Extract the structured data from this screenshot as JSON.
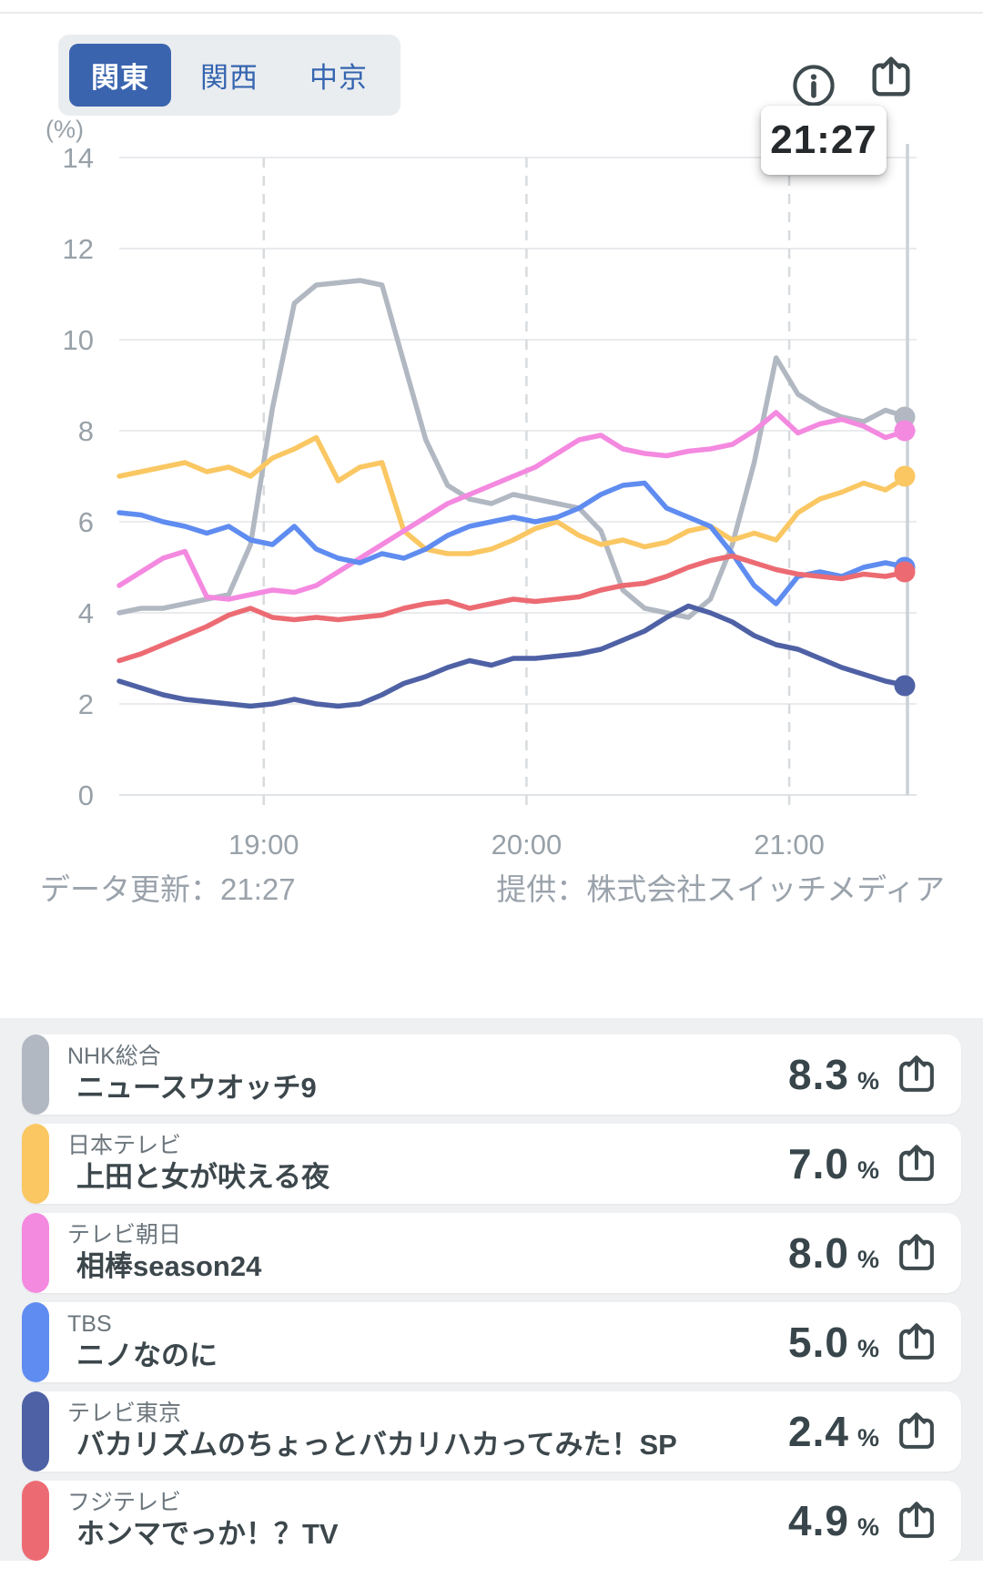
{
  "header": {
    "tabs": [
      {
        "label": "関東",
        "selected": true
      },
      {
        "label": "関西",
        "selected": false
      },
      {
        "label": "中京",
        "selected": false
      }
    ]
  },
  "tooltip": {
    "time": "21:27"
  },
  "chart_data": {
    "type": "line",
    "unit_label": "(%)",
    "ylim": [
      0,
      14
    ],
    "y_ticks": [
      0,
      2,
      4,
      6,
      8,
      10,
      12,
      14
    ],
    "x_tick_labels": [
      "19:00",
      "20:00",
      "21:00"
    ],
    "x_tick_minutes": [
      1140,
      1200,
      1260
    ],
    "x_range_minutes": [
      1107,
      1287
    ],
    "sample_interval_min": 5,
    "grid": "on",
    "cursor_time": "21:27",
    "series": [
      {
        "station": "NHK総合",
        "program": "ニュースウオッチ9",
        "rating": 8.3,
        "rating_str": "8.3",
        "color": "#b1b8c2",
        "values": [
          4.0,
          4.1,
          4.1,
          4.2,
          4.3,
          4.4,
          5.5,
          8.5,
          10.8,
          11.2,
          11.25,
          11.3,
          11.2,
          9.5,
          7.8,
          6.8,
          6.5,
          6.4,
          6.6,
          6.5,
          6.4,
          6.3,
          5.8,
          4.5,
          4.1,
          4.0,
          3.9,
          4.3,
          5.5,
          7.3,
          9.6,
          8.8,
          8.5,
          8.3,
          8.2,
          8.45,
          8.3
        ]
      },
      {
        "station": "日本テレビ",
        "program": "上田と女が吠える夜",
        "rating": 7.0,
        "rating_str": "7.0",
        "color": "#fac763",
        "values": [
          7.0,
          7.1,
          7.2,
          7.3,
          7.1,
          7.2,
          7.0,
          7.4,
          7.6,
          7.85,
          6.9,
          7.2,
          7.3,
          5.8,
          5.4,
          5.3,
          5.3,
          5.4,
          5.6,
          5.85,
          6.0,
          5.7,
          5.5,
          5.6,
          5.45,
          5.55,
          5.8,
          5.9,
          5.6,
          5.75,
          5.6,
          6.2,
          6.5,
          6.65,
          6.85,
          6.7,
          7.0
        ]
      },
      {
        "station": "テレビ朝日",
        "program": "相棒season24",
        "rating": 8.0,
        "rating_str": "8.0",
        "color": "#f489e0",
        "values": [
          4.6,
          4.9,
          5.2,
          5.35,
          4.35,
          4.3,
          4.4,
          4.5,
          4.45,
          4.6,
          4.9,
          5.2,
          5.5,
          5.8,
          6.1,
          6.4,
          6.6,
          6.8,
          7.0,
          7.2,
          7.5,
          7.8,
          7.9,
          7.6,
          7.5,
          7.45,
          7.55,
          7.6,
          7.7,
          8.0,
          8.4,
          7.95,
          8.15,
          8.25,
          8.1,
          7.85,
          8.0
        ]
      },
      {
        "station": "TBS",
        "program": "ニノなのに",
        "rating": 5.0,
        "rating_str": "5.0",
        "color": "#5f8cf0",
        "values": [
          6.2,
          6.15,
          6.0,
          5.9,
          5.75,
          5.9,
          5.6,
          5.5,
          5.9,
          5.4,
          5.2,
          5.1,
          5.3,
          5.2,
          5.4,
          5.7,
          5.9,
          6.0,
          6.1,
          6.0,
          6.1,
          6.3,
          6.6,
          6.8,
          6.85,
          6.3,
          6.1,
          5.9,
          5.3,
          4.6,
          4.2,
          4.8,
          4.9,
          4.8,
          5.0,
          5.1,
          5.0
        ]
      },
      {
        "station": "テレビ東京",
        "program": "バカリズムのちょっとバカリハカってみた！SP",
        "rating": 2.4,
        "rating_str": "2.4",
        "color": "#4f61a5",
        "values": [
          2.5,
          2.35,
          2.2,
          2.1,
          2.05,
          2.0,
          1.95,
          2.0,
          2.1,
          2.0,
          1.95,
          2.0,
          2.2,
          2.45,
          2.6,
          2.8,
          2.95,
          2.85,
          3.0,
          3.0,
          3.05,
          3.1,
          3.2,
          3.4,
          3.6,
          3.9,
          4.15,
          4.0,
          3.8,
          3.5,
          3.3,
          3.2,
          3.0,
          2.8,
          2.65,
          2.5,
          2.4
        ]
      },
      {
        "station": "フジテレビ",
        "program": "ホンマでっか！？TV",
        "rating": 4.9,
        "rating_str": "4.9",
        "color": "#ec6b73",
        "values": [
          2.95,
          3.1,
          3.3,
          3.5,
          3.7,
          3.95,
          4.1,
          3.9,
          3.85,
          3.9,
          3.85,
          3.9,
          3.95,
          4.1,
          4.2,
          4.25,
          4.1,
          4.2,
          4.3,
          4.25,
          4.3,
          4.35,
          4.5,
          4.6,
          4.65,
          4.8,
          5.0,
          5.15,
          5.25,
          5.1,
          4.95,
          4.85,
          4.8,
          4.75,
          4.85,
          4.8,
          4.9
        ]
      }
    ]
  },
  "footer": {
    "updated": "データ更新：21:27",
    "provider": "提供：株式会社スイッチメディア"
  },
  "list": {
    "percent_unit": "%"
  }
}
